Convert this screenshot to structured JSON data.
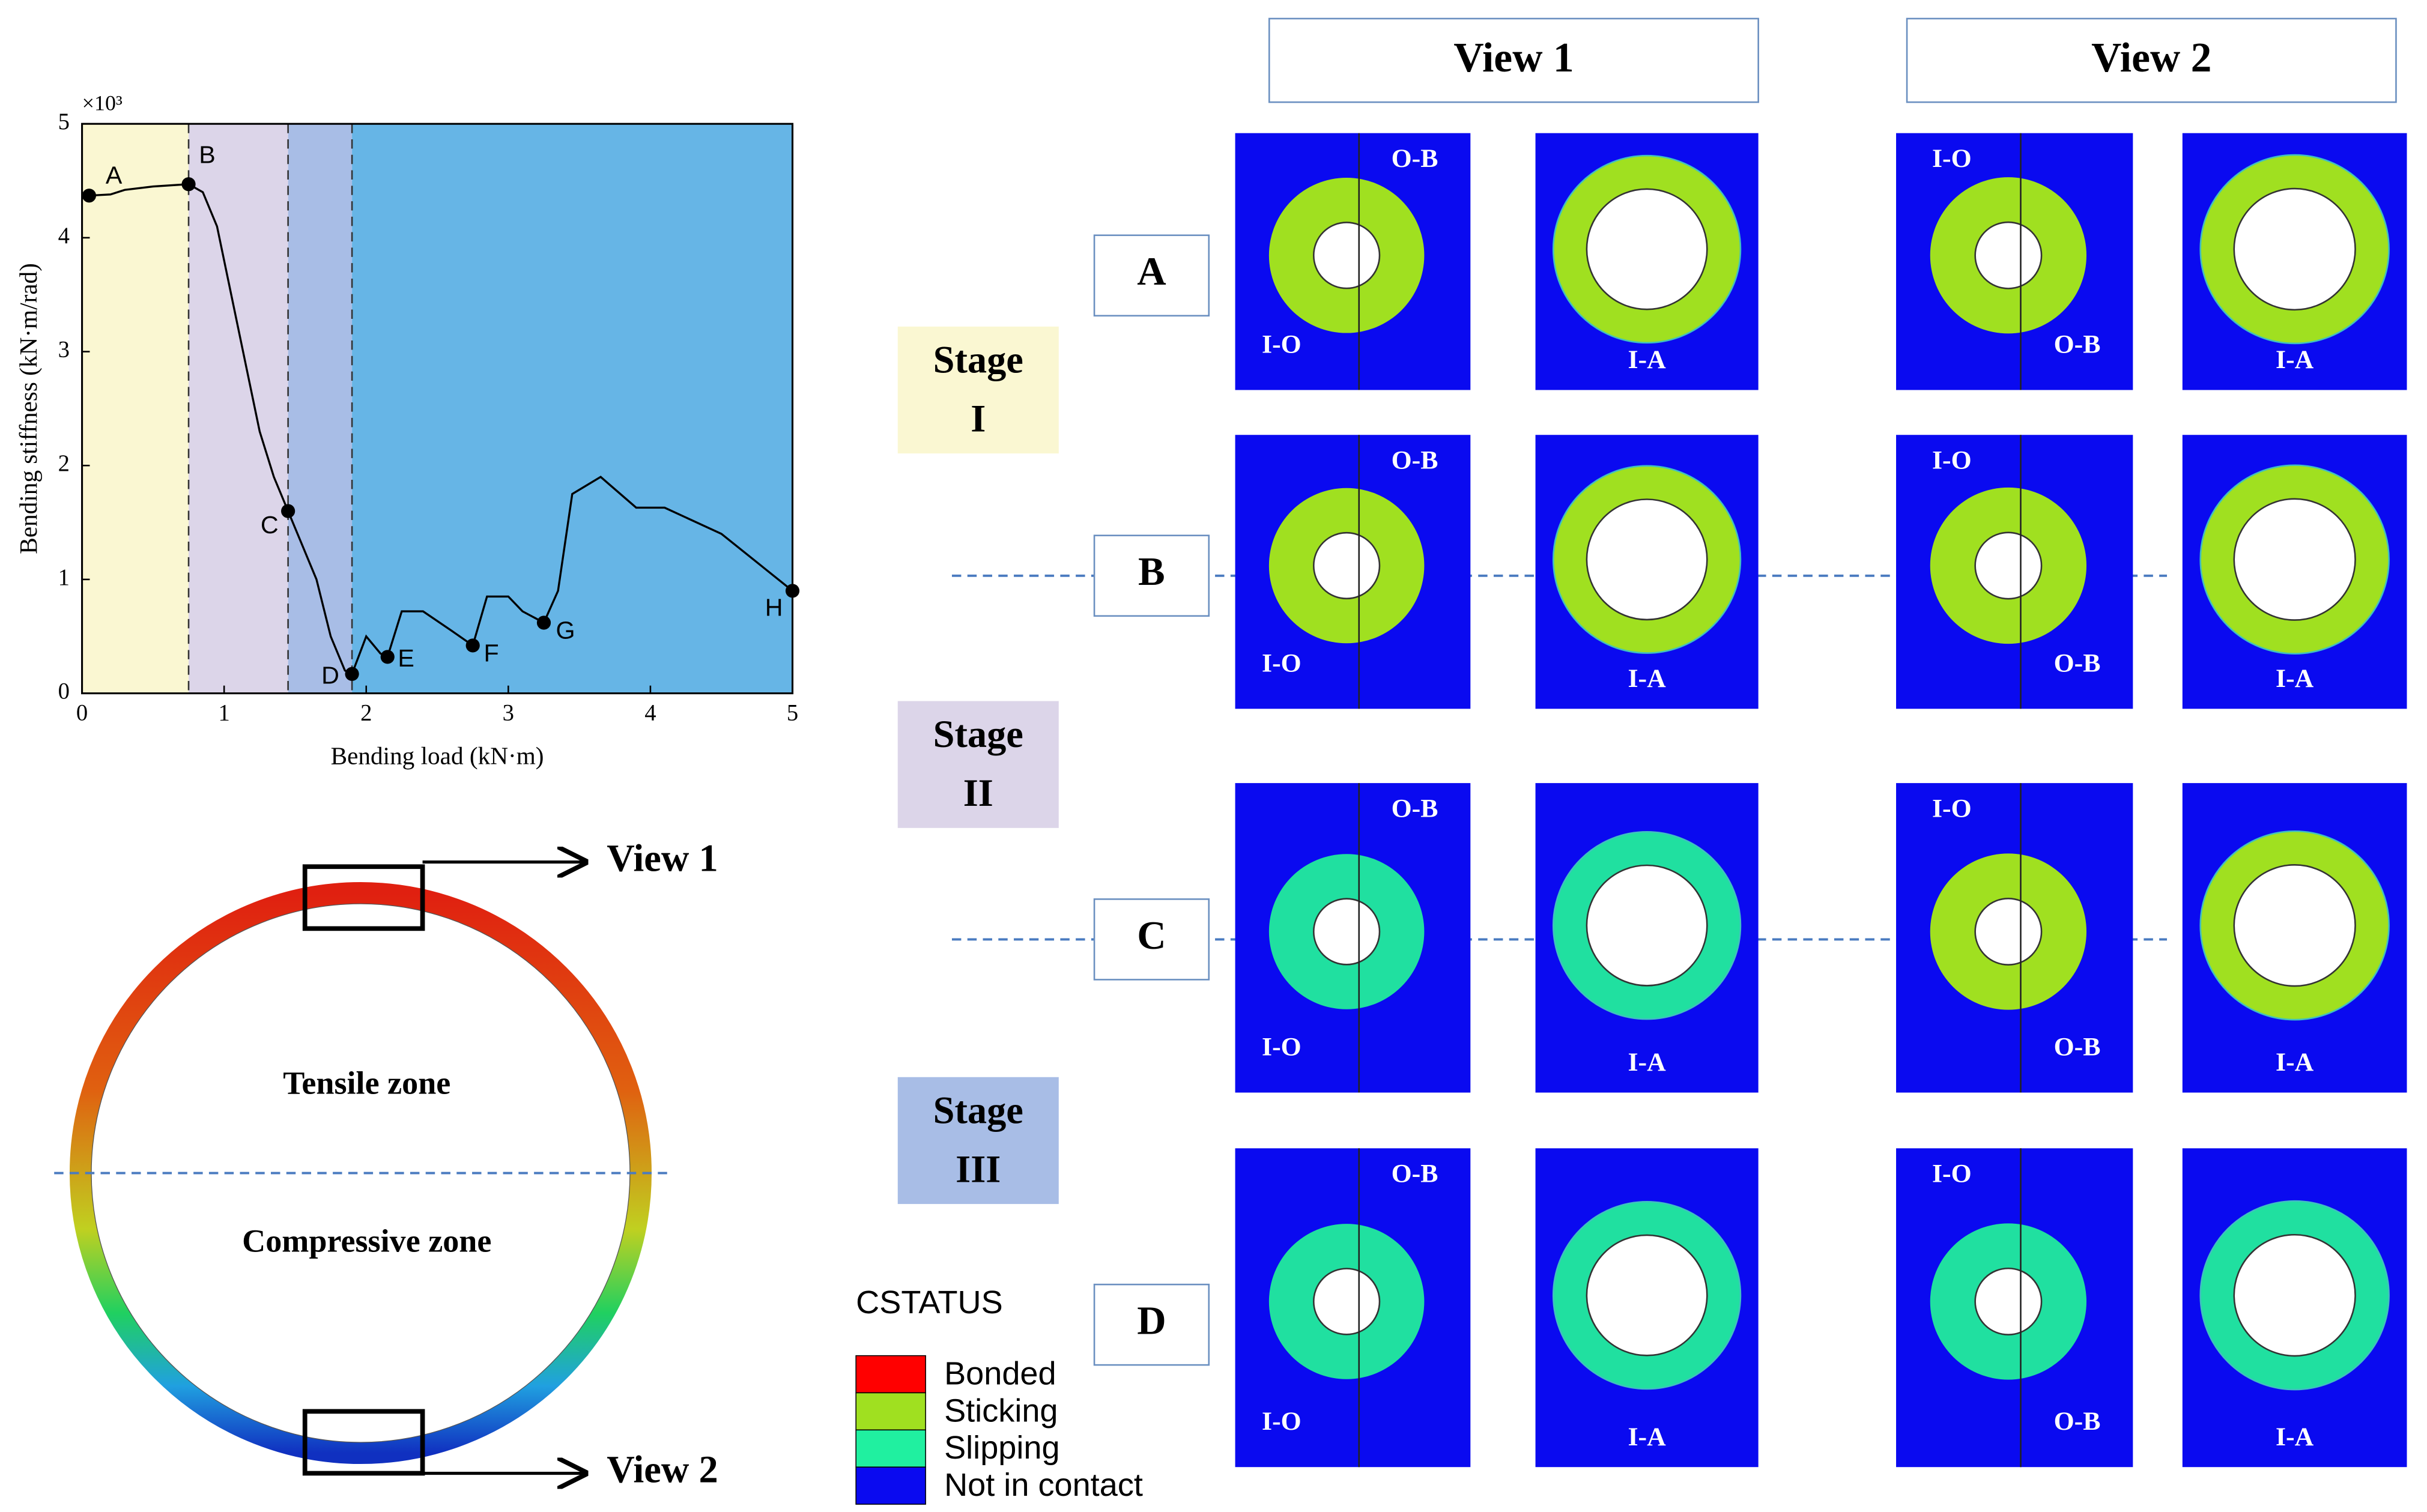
{
  "chart_data": {
    "type": "line",
    "xlabel": "Bending load (kN·m)",
    "ylabel": "Bending stiffness (kN·m/rad)",
    "multiplier": "×10³",
    "xlim": [
      0,
      5
    ],
    "ylim": [
      0,
      5
    ],
    "xticks": [
      0,
      1,
      2,
      3,
      4,
      5
    ],
    "yticks": [
      0,
      1,
      2,
      3,
      4,
      5
    ],
    "series": [
      {
        "color": "#000000",
        "x": [
          0,
          0.05,
          0.2,
          0.3,
          0.5,
          0.75,
          0.85,
          0.95,
          1.05,
          1.15,
          1.25,
          1.35,
          1.45,
          1.55,
          1.65,
          1.75,
          1.85,
          1.9,
          2.0,
          2.1,
          2.15,
          2.25,
          2.4,
          2.6,
          2.75,
          2.85,
          3.0,
          3.1,
          3.25,
          3.35,
          3.45,
          3.65,
          3.9,
          4.1,
          4.5,
          5.0
        ],
        "values": [
          4.35,
          4.37,
          4.38,
          4.42,
          4.45,
          4.47,
          4.4,
          4.1,
          3.5,
          2.9,
          2.3,
          1.9,
          1.6,
          1.3,
          1.0,
          0.5,
          0.2,
          0.17,
          0.5,
          0.35,
          0.32,
          0.72,
          0.72,
          0.55,
          0.42,
          0.85,
          0.85,
          0.72,
          0.62,
          0.9,
          1.75,
          1.9,
          1.63,
          1.63,
          1.4,
          0.9
        ]
      }
    ],
    "points": {
      "labels": [
        "A",
        "B",
        "C",
        "D",
        "E",
        "F",
        "G",
        "H"
      ],
      "x": [
        0.05,
        0.75,
        1.45,
        1.9,
        2.15,
        2.75,
        3.25,
        5.0
      ],
      "values": [
        4.37,
        4.47,
        1.6,
        0.17,
        0.32,
        0.42,
        0.62,
        0.9
      ]
    },
    "stages": {
      "bounds": [
        0,
        0.75,
        1.45,
        1.9,
        5
      ],
      "colors": [
        "#faf7d2",
        "#dcd5e9",
        "#a8bde6",
        "#66b5e6"
      ]
    }
  },
  "views": [
    "View 1",
    "View 2"
  ],
  "stages": [
    {
      "lines": [
        "Stage",
        "I"
      ],
      "color": "#faf7d2"
    },
    {
      "lines": [
        "Stage",
        "II"
      ],
      "color": "#dcd5e9"
    },
    {
      "lines": [
        "Stage",
        "III"
      ],
      "color": "#a8bde6"
    }
  ],
  "rows": [
    "A",
    "B",
    "C",
    "D"
  ],
  "panel_labels": {
    "outer": "O-B",
    "inner": "I-O",
    "inner_a": "I-A"
  },
  "ring": {
    "tensile": "Tensile zone",
    "compressive": "Compressive zone"
  },
  "legend": {
    "title": "CSTATUS",
    "items": [
      {
        "name": "Bonded",
        "color": "#ff0000"
      },
      {
        "name": "Sticking",
        "color": "#a0e020"
      },
      {
        "name": "Slipping",
        "color": "#20f0a0"
      },
      {
        "name": "Not in contact",
        "color": "#0a0af0"
      }
    ]
  }
}
